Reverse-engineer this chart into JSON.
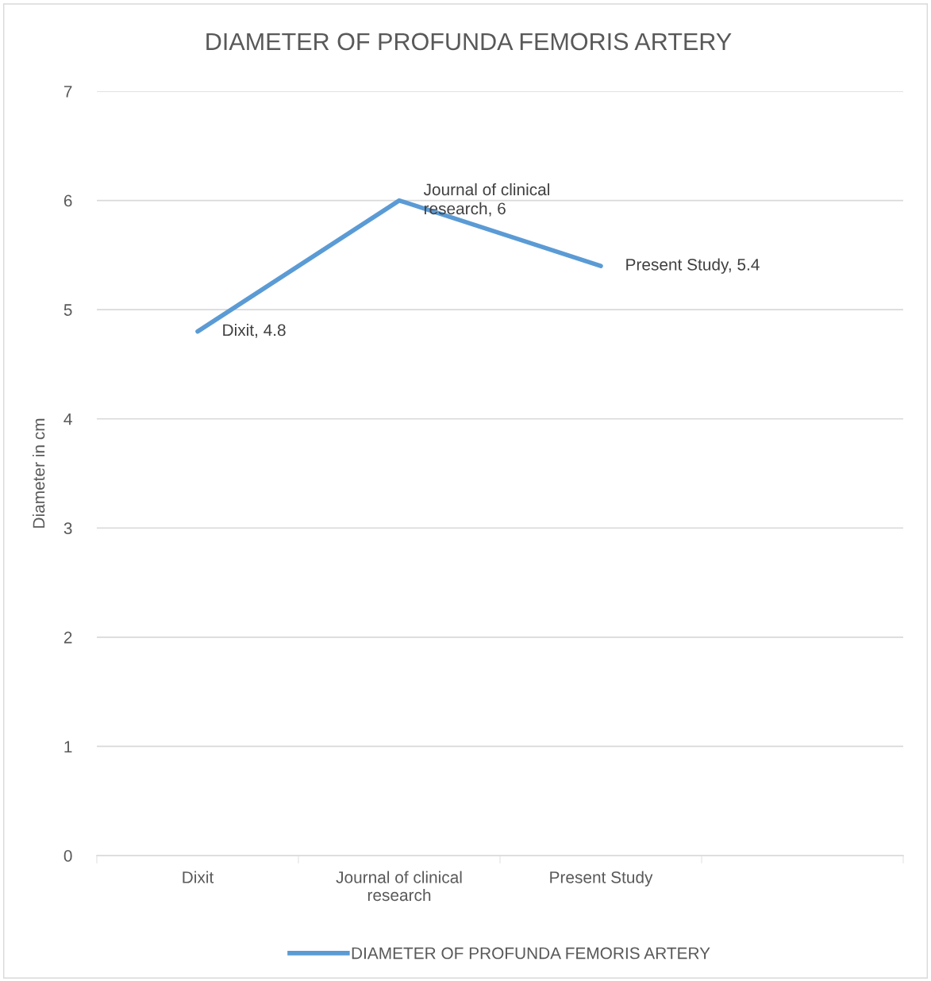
{
  "chart_data": {
    "type": "line",
    "title": "DIAMETER OF PROFUNDA FEMORIS ARTERY",
    "ylabel": "Diameter in cm",
    "categories": [
      "Dixit",
      "Journal of clinical\nresearch",
      "Present Study",
      null
    ],
    "series": [
      {
        "name": "DIAMETER OF PROFUNDA FEMORIS ARTERY",
        "color": "#5b9bd5",
        "values": [
          4.8,
          6,
          5.4,
          null
        ],
        "value_labels": [
          "Dixit, 4.8",
          "Journal of clinical\nresearch, 6",
          "Present Study, 5.4",
          null
        ]
      }
    ],
    "ylim": [
      0,
      7
    ],
    "yticks": [
      0,
      1,
      2,
      3,
      4,
      5,
      6,
      7
    ],
    "grid": "y",
    "legend": "bottom",
    "marker": "none",
    "line_style": "solid"
  }
}
